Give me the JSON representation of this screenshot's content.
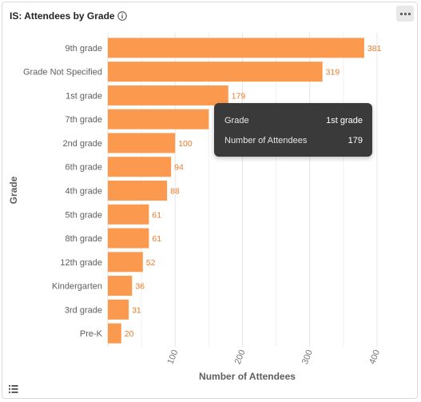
{
  "visual": {
    "title": "IS: Attendees by Grade",
    "info_icon": "info-icon",
    "more_icon": "more-options-icon",
    "legend_icon": "list-icon"
  },
  "chart_data": {
    "type": "bar",
    "orientation": "horizontal",
    "categories": [
      "9th grade",
      "Grade Not Specified",
      "1st grade",
      "7th grade",
      "2nd grade",
      "6th grade",
      "4th grade",
      "5th grade",
      "8th grade",
      "12th grade",
      "Kindergarten",
      "3rd grade",
      "Pre-K"
    ],
    "values": [
      381,
      319,
      179,
      150,
      100,
      94,
      88,
      61,
      61,
      52,
      36,
      31,
      20
    ],
    "data_labels": [
      "381",
      "319",
      "179",
      "",
      "100",
      "94",
      "88",
      "61",
      "61",
      "52",
      "36",
      "31",
      "20"
    ],
    "xlabel": "Number of Attendees",
    "ylabel": "Grade",
    "xlim": [
      0,
      450
    ],
    "x_ticks": [
      100,
      200,
      300,
      400
    ],
    "grid": true,
    "bar_color": "#fb9a4e",
    "label_color": "#f07a2a"
  },
  "tooltip": {
    "rows": [
      {
        "key": "Grade",
        "value": "1st grade"
      },
      {
        "key": "Number of Attendees",
        "value": "179"
      }
    ]
  }
}
